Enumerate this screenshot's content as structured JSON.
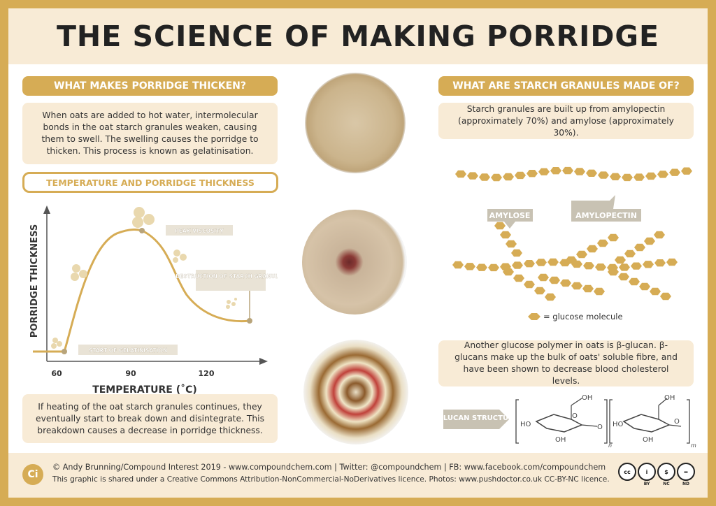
{
  "title": "THE SCIENCE OF MAKING PORRIDGE",
  "left": {
    "heading": "WHAT MAKES PORRIDGE THICKEN?",
    "intro": "When oats are added to hot water, intermolecular bonds in the oat starch granules weaken, causing them to swell. The swelling causes the porridge to thicken. This process is known as gelatinisation.",
    "chart_heading": "TEMPERATURE AND PORRIDGE THICKNESS",
    "outro": "If heating of the oat starch granules continues, they eventually start to break down and disintegrate. This breakdown causes a decrease in porridge thickness."
  },
  "chart_data": {
    "type": "line",
    "xlabel": "TEMPERATURE (˚C)",
    "ylabel": "PORRIDGE THICKNESS",
    "x_ticks": [
      60,
      90,
      120
    ],
    "annotations": [
      {
        "label": "START OF GELATINISATION",
        "x": 60
      },
      {
        "label": "PEAK VISCOSITY",
        "x": 90
      },
      {
        "label": "DESTRUCTION OF STARCH GRANULES",
        "x": 135
      }
    ],
    "color": "#d6ac55"
  },
  "right": {
    "heading": "WHAT ARE STARCH GRANULES MADE OF?",
    "intro": "Starch granules are built up from amylopectin (approximately 70%) and amylose (approximately 30%).",
    "amylose_label": "AMYLOSE",
    "amylopectin_label": "AMYLOPECTIN",
    "legend": "= glucose molecule",
    "beta_text": "Another glucose polymer in oats is β-glucan. β-glucans make up the bulk of oats' soluble fibre, and have been shown to decrease blood cholesterol levels.",
    "beta_label": "β-GLUCAN STRUCTURE",
    "struct": {
      "ho": "HO",
      "oh": "OH",
      "o": "O",
      "n": "n",
      "m": "m"
    }
  },
  "footer": {
    "logo": "Ci",
    "line1": "© Andy Brunning/Compound Interest 2019 - www.compoundchem.com | Twitter: @compoundchem | FB: www.facebook.com/compoundchem",
    "line2": "This graphic is shared under a Creative Commons Attribution-NonCommercial-NoDerivatives licence. Photos: www.pushdoctor.co.uk CC-BY-NC licence.",
    "badges": [
      {
        "symbol": "cc",
        "label": ""
      },
      {
        "symbol": "i",
        "label": "BY"
      },
      {
        "symbol": "$",
        "label": "NC"
      },
      {
        "symbol": "=",
        "label": "ND"
      }
    ]
  },
  "colors": {
    "gold": "#d6ac55",
    "cream": "#f8ebd6",
    "border": "#d6ac55"
  }
}
